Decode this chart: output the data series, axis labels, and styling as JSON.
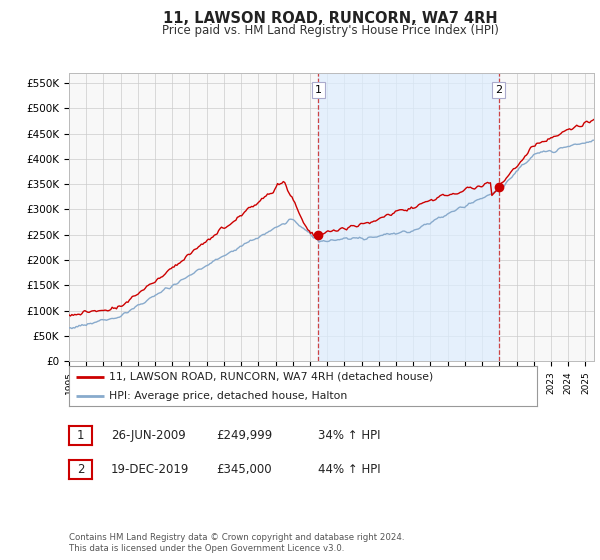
{
  "title": "11, LAWSON ROAD, RUNCORN, WA7 4RH",
  "subtitle": "Price paid vs. HM Land Registry's House Price Index (HPI)",
  "legend_line1": "11, LAWSON ROAD, RUNCORN, WA7 4RH (detached house)",
  "legend_line2": "HPI: Average price, detached house, Halton",
  "transaction1_date": "26-JUN-2009",
  "transaction1_price": "£249,999",
  "transaction1_hpi": "34% ↑ HPI",
  "transaction2_date": "19-DEC-2019",
  "transaction2_price": "£345,000",
  "transaction2_hpi": "44% ↑ HPI",
  "footnote": "Contains HM Land Registry data © Crown copyright and database right 2024.\nThis data is licensed under the Open Government Licence v3.0.",
  "red_color": "#cc0000",
  "blue_color": "#88aacc",
  "blue_fill_color": "#ddeeff",
  "vline_color": "#cc4444",
  "grid_color": "#cccccc",
  "bg_color": "#ffffff",
  "plot_bg_color": "#f8f8f8",
  "ylim_min": 0,
  "ylim_max": 570000,
  "yticks": [
    0,
    50000,
    100000,
    150000,
    200000,
    250000,
    300000,
    350000,
    400000,
    450000,
    500000,
    550000
  ],
  "ytick_labels": [
    "£0",
    "£50K",
    "£100K",
    "£150K",
    "£200K",
    "£250K",
    "£300K",
    "£350K",
    "£400K",
    "£450K",
    "£500K",
    "£550K"
  ],
  "xtick_years": [
    1995,
    1996,
    1997,
    1998,
    1999,
    2000,
    2001,
    2002,
    2003,
    2004,
    2005,
    2006,
    2007,
    2008,
    2009,
    2010,
    2011,
    2012,
    2013,
    2014,
    2015,
    2016,
    2017,
    2018,
    2019,
    2020,
    2021,
    2022,
    2023,
    2024,
    2025
  ],
  "t1_year": 2009.484,
  "t2_year": 2019.964,
  "t1_price": 249999,
  "t2_price": 345000
}
